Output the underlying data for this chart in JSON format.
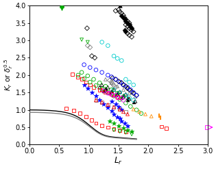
{
  "xlabel": "L_r",
  "ylabel": "K_r or δ_r^{0.5}",
  "xlim": [
    0.0,
    3.0
  ],
  "ylim": [
    0.0,
    4.0
  ],
  "xticks": [
    0.0,
    0.5,
    1.0,
    1.5,
    2.0,
    2.5,
    3.0
  ],
  "yticks": [
    0.0,
    0.5,
    1.0,
    1.5,
    2.0,
    2.5,
    3.0,
    3.5,
    4.0
  ],
  "background_color": "#ffffff",
  "black_triangle_up_filled": {
    "x": [
      1.52
    ],
    "y": [
      4.0
    ]
  },
  "black_diamond_unfilled_upper": {
    "x": [
      1.45,
      1.5,
      1.52,
      1.55,
      1.58,
      1.6,
      1.62,
      1.65,
      1.68,
      1.62,
      1.65,
      1.68,
      1.72,
      1.75,
      1.65,
      1.68,
      1.72
    ],
    "y": [
      3.85,
      3.88,
      3.82,
      3.78,
      3.72,
      3.65,
      3.6,
      3.55,
      3.5,
      3.45,
      3.4,
      3.35,
      3.3,
      3.25,
      3.2,
      3.15,
      3.1
    ]
  },
  "black_diamond_filled_upper": {
    "x": [
      1.55,
      1.58,
      1.6,
      1.62,
      1.65,
      1.68,
      1.7,
      1.72,
      1.6,
      1.62
    ],
    "y": [
      3.7,
      3.65,
      3.6,
      3.55,
      3.5,
      3.45,
      3.4,
      3.35,
      3.3,
      3.25
    ]
  },
  "black_diamond_single": {
    "x": [
      0.97
    ],
    "y": [
      3.35
    ]
  },
  "black_diamond_pair": {
    "x": [
      1.05,
      1.1
    ],
    "y": [
      2.55,
      2.5
    ]
  },
  "gray_diamond_pair": {
    "x": [
      0.98,
      1.02
    ],
    "y": [
      2.85,
      2.8
    ]
  },
  "black_diamond_lower": {
    "x": [
      1.4,
      1.45,
      1.5,
      1.55,
      1.58,
      1.62,
      1.65,
      1.68,
      1.72,
      1.75,
      1.8
    ],
    "y": [
      1.92,
      1.88,
      1.82,
      1.78,
      1.72,
      1.68,
      1.62,
      1.58,
      1.52,
      1.48,
      1.42
    ]
  },
  "gray_diamond_lower": {
    "x": [
      1.35,
      1.38,
      1.4,
      1.42,
      1.45
    ],
    "y": [
      1.85,
      1.8,
      1.75,
      1.7,
      1.65
    ]
  },
  "cyan_circles": {
    "x": [
      1.22,
      1.32,
      1.42,
      1.48,
      1.55,
      1.62,
      1.68,
      1.75
    ],
    "y": [
      2.95,
      2.85,
      2.55,
      2.48,
      2.42,
      1.88,
      1.8,
      1.72
    ]
  },
  "cyan_circles2": {
    "x": [
      1.42,
      1.52,
      1.62,
      1.68,
      1.75
    ],
    "y": [
      1.58,
      1.5,
      1.42,
      1.35,
      1.28
    ]
  },
  "blue_circles": {
    "x": [
      0.92,
      1.02,
      1.12,
      1.22,
      1.32,
      1.38,
      1.45,
      1.52,
      1.58,
      1.65,
      1.7,
      1.75,
      1.8
    ],
    "y": [
      2.3,
      2.22,
      2.15,
      2.08,
      2.0,
      1.95,
      1.88,
      1.8,
      1.72,
      1.65,
      1.58,
      1.5,
      1.42
    ]
  },
  "blue_stars": {
    "x": [
      0.92,
      0.98,
      1.05,
      1.12,
      1.18,
      1.25,
      1.32,
      1.38,
      1.42,
      1.48,
      1.52,
      1.55,
      1.6,
      1.65,
      1.38,
      1.45,
      1.5,
      1.55
    ],
    "y": [
      1.72,
      1.62,
      1.5,
      1.4,
      1.28,
      1.18,
      1.08,
      0.98,
      0.88,
      0.8,
      0.75,
      0.68,
      0.62,
      0.55,
      1.25,
      1.18,
      1.1,
      1.02
    ]
  },
  "red_squares_lower": {
    "x": [
      0.62,
      0.75,
      0.85,
      0.95,
      1.05,
      1.12,
      1.22,
      1.32,
      1.42,
      1.52,
      1.62,
      2.22,
      2.3
    ],
    "y": [
      1.05,
      0.98,
      0.9,
      0.8,
      0.7,
      0.62,
      0.55,
      0.5,
      0.45,
      0.42,
      0.38,
      0.52,
      0.48
    ]
  },
  "red_squares_upper": {
    "x": [
      0.72,
      0.82,
      0.88,
      0.95,
      1.02,
      1.08,
      1.18,
      1.28,
      1.38,
      1.48
    ],
    "y": [
      2.02,
      1.95,
      1.88,
      1.8,
      1.72,
      1.65,
      1.58,
      1.52,
      1.45,
      1.38
    ]
  },
  "red_triangles": {
    "x": [
      1.22,
      1.32,
      1.42,
      1.52,
      1.12,
      1.22,
      1.32,
      1.42,
      1.52,
      1.58,
      1.65
    ],
    "y": [
      1.58,
      1.5,
      1.42,
      1.35,
      1.28,
      1.22,
      1.15,
      1.08,
      1.02,
      0.95,
      0.88
    ]
  },
  "green_triangle_up_filled": {
    "x": [
      0.55
    ],
    "y": [
      4.0
    ]
  },
  "green_triangle_down_filled": {
    "x": [
      0.55
    ],
    "y": [
      3.92
    ]
  },
  "green_triangle_down_unfilled": {
    "x": [
      0.88,
      0.98
    ],
    "y": [
      3.02,
      2.95
    ]
  },
  "green_circles": {
    "x": [
      0.82,
      0.92,
      1.02,
      1.12,
      1.22,
      1.32,
      1.42,
      1.52,
      1.62,
      1.7,
      1.8,
      1.88
    ],
    "y": [
      2.0,
      1.9,
      1.8,
      1.7,
      1.6,
      1.5,
      1.4,
      1.3,
      1.2,
      1.1,
      1.0,
      0.9
    ]
  },
  "green_circles2": {
    "x": [
      0.88,
      0.98,
      1.08,
      1.18,
      1.28,
      1.38,
      1.48,
      1.58
    ],
    "y": [
      2.08,
      1.98,
      1.88,
      1.78,
      1.68,
      1.58,
      1.48,
      1.38
    ]
  },
  "green_triangles_down_bottom": {
    "x": [
      1.42,
      1.52,
      1.62,
      1.72
    ],
    "y": [
      0.42,
      0.38,
      0.35,
      0.3
    ]
  },
  "green_stars": {
    "x": [
      1.35,
      1.42,
      1.5,
      1.58,
      1.65,
      1.72
    ],
    "y": [
      0.68,
      0.62,
      0.55,
      0.48,
      0.42,
      0.38
    ]
  },
  "magenta_circles": {
    "x": [
      1.32,
      1.4,
      1.48,
      1.58,
      1.25,
      1.35,
      1.45,
      1.55
    ],
    "y": [
      1.48,
      1.42,
      1.35,
      1.28,
      1.55,
      1.48,
      1.42,
      1.35
    ]
  },
  "magenta_square": {
    "x": [
      2.98
    ],
    "y": [
      0.5
    ]
  },
  "orange_triangles": {
    "x": [
      1.75,
      1.85,
      1.95,
      2.05
    ],
    "y": [
      1.02,
      0.95,
      0.88,
      0.82
    ]
  },
  "orange_bar": {
    "x": [
      2.18,
      2.2
    ],
    "y": [
      0.85,
      0.78
    ]
  },
  "gray_triangles": {
    "x": [
      1.28,
      1.38,
      1.48,
      1.58,
      1.68,
      1.78
    ],
    "y": [
      1.88,
      1.78,
      1.68,
      1.58,
      1.48,
      1.38
    ]
  },
  "gray_squares": {
    "x": [
      1.12,
      1.22,
      1.32,
      1.42,
      1.52,
      1.62
    ],
    "y": [
      1.28,
      1.22,
      1.15,
      1.08,
      1.02,
      0.95
    ]
  },
  "black_triangles_open": {
    "x": [
      1.18,
      1.28,
      1.38,
      1.48,
      1.58,
      1.68,
      1.78,
      1.22,
      1.32,
      1.42,
      1.52,
      1.62
    ],
    "y": [
      1.65,
      1.58,
      1.52,
      1.45,
      1.38,
      1.32,
      1.25,
      1.72,
      1.65,
      1.58,
      1.52,
      1.45
    ]
  },
  "black_triangles_filled": {
    "x": [
      1.25,
      1.35,
      1.45,
      1.55,
      1.65,
      1.75,
      1.28,
      1.38,
      1.48,
      1.58,
      1.65
    ],
    "y": [
      1.55,
      1.48,
      1.42,
      1.35,
      1.28,
      1.22,
      1.62,
      1.55,
      1.48,
      1.42,
      1.35
    ]
  }
}
